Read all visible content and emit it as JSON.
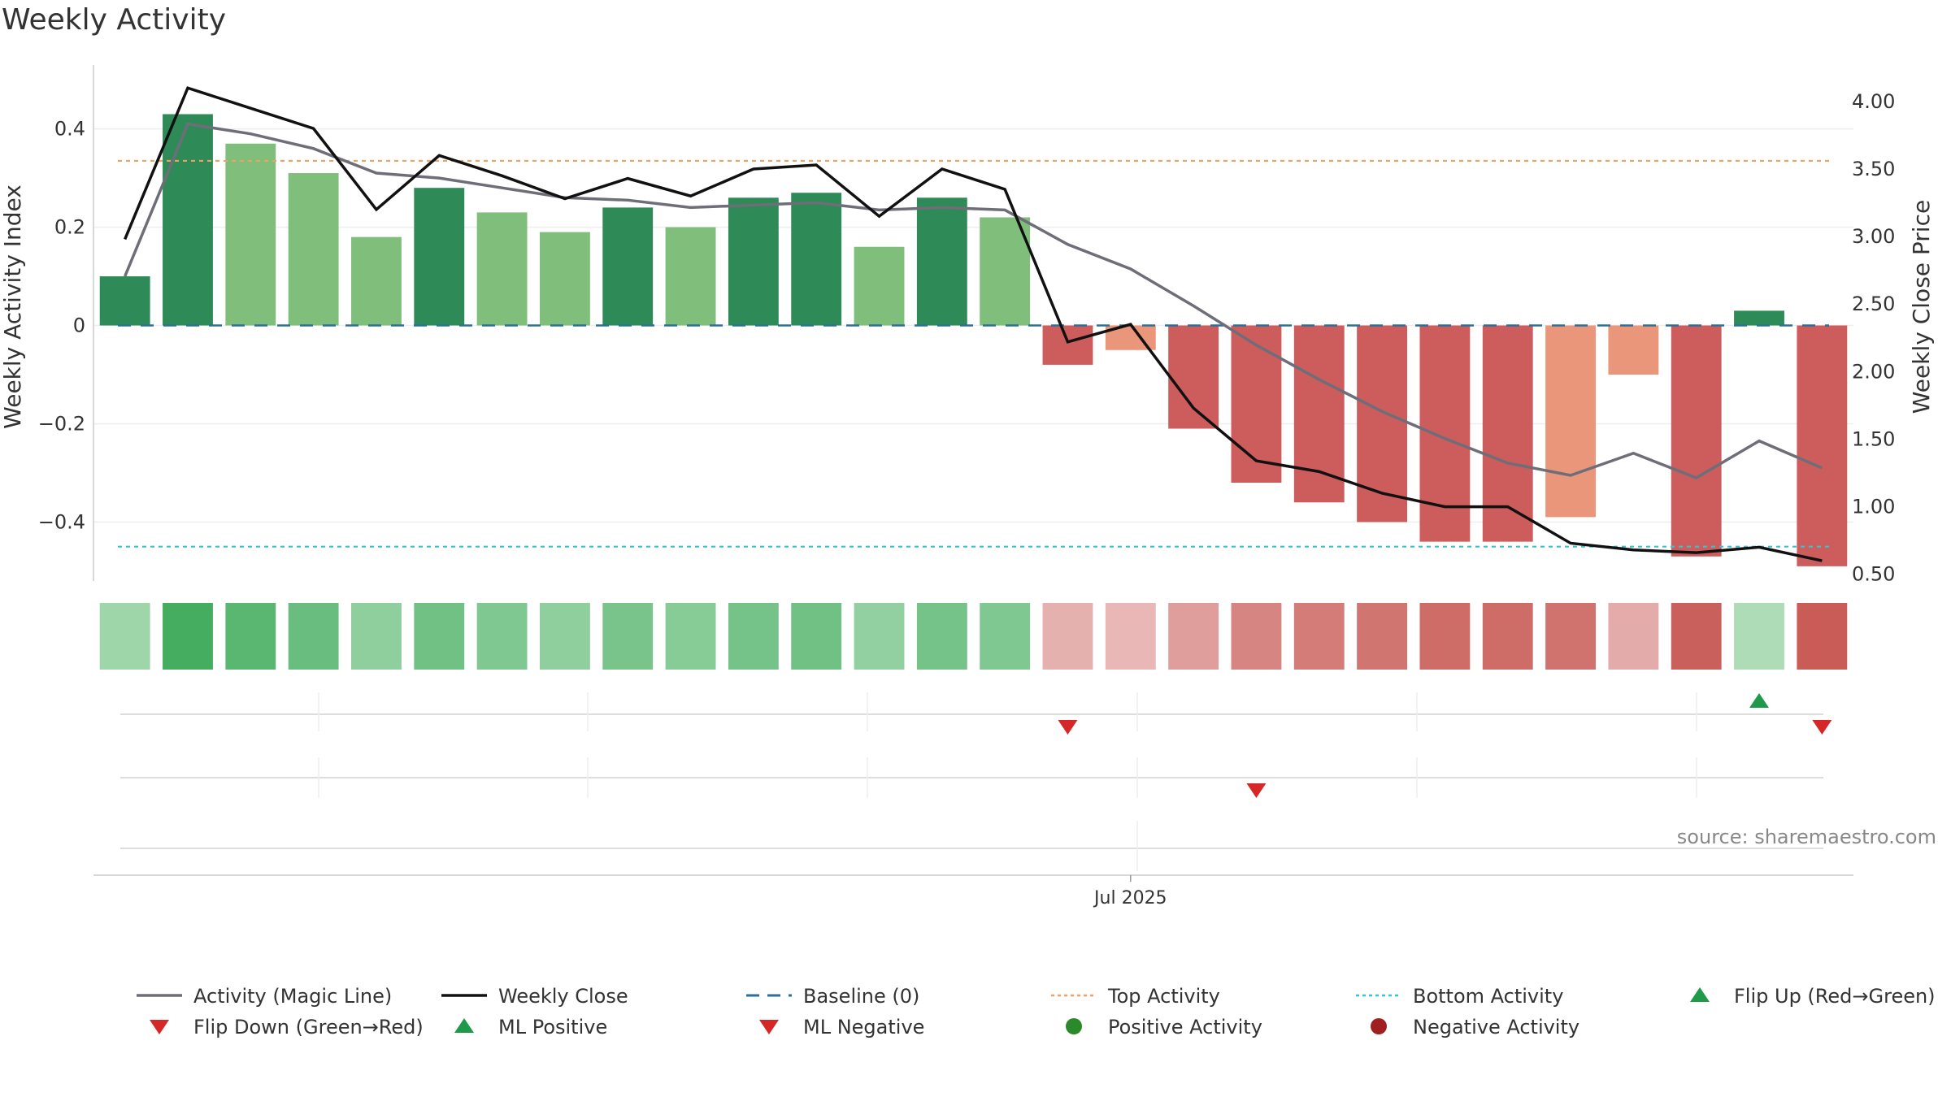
{
  "title": "Weekly Activity",
  "source": "source: sharemaestro.com",
  "colors": {
    "magic_line": "#6e6e78",
    "close_line": "#111111",
    "baseline": "#2b6f9c",
    "top_line": "#f0a060",
    "bottom_line": "#34c3d3",
    "flip_up": "#1e9a4a",
    "flip_down": "#d62728",
    "ml_positive": "#1e9a4a",
    "ml_negative": "#d62728",
    "positive_dot": "#2a8a2a",
    "negative_dot": "#a02020"
  },
  "chart_data": {
    "type": "bar",
    "title": "Weekly Activity",
    "x_tick_labels": [
      "Jul 2025"
    ],
    "x_tick_index": 16.5,
    "left_axis": {
      "label": "Weekly Activity Index",
      "ylim": [
        -0.52,
        0.53
      ],
      "ticks": [
        -0.4,
        -0.2,
        0,
        0.2,
        0.4
      ],
      "tick_labels": [
        "−0.4",
        "−0.2",
        "0",
        "0.2",
        "0.4"
      ]
    },
    "right_axis": {
      "label": "Weekly Close Price",
      "ylim": [
        0.45,
        4.27
      ],
      "ticks": [
        0.5,
        1.0,
        1.5,
        2.0,
        2.5,
        3.0,
        3.5,
        4.0
      ],
      "tick_labels": [
        "0.50",
        "1.00",
        "1.50",
        "2.00",
        "2.50",
        "3.00",
        "3.50",
        "4.00"
      ]
    },
    "activity_index": [
      0.1,
      0.43,
      0.37,
      0.31,
      0.18,
      0.28,
      0.23,
      0.19,
      0.24,
      0.2,
      0.26,
      0.27,
      0.16,
      0.26,
      0.22,
      -0.08,
      -0.05,
      -0.21,
      -0.32,
      -0.36,
      -0.4,
      -0.44,
      -0.44,
      -0.39,
      -0.1,
      -0.47,
      0.03,
      -0.49
    ],
    "bar_strength": [
      "strong",
      "strong",
      "light",
      "light",
      "light",
      "strong",
      "light",
      "light",
      "strong",
      "light",
      "strong",
      "strong",
      "light",
      "strong",
      "light",
      "strong",
      "light",
      "strong",
      "strong",
      "strong",
      "strong",
      "strong",
      "strong",
      "light",
      "light",
      "strong",
      "strong",
      "strong"
    ],
    "magic_line": [
      0.1,
      0.41,
      0.39,
      0.36,
      0.31,
      0.3,
      0.28,
      0.26,
      0.255,
      0.24,
      0.245,
      0.25,
      0.235,
      0.24,
      0.235,
      0.165,
      0.115,
      0.04,
      -0.04,
      -0.11,
      -0.175,
      -0.23,
      -0.28,
      -0.305,
      -0.26,
      -0.31,
      -0.235,
      -0.29
    ],
    "weekly_close": [
      2.98,
      4.1,
      3.95,
      3.8,
      3.2,
      3.6,
      3.45,
      3.28,
      3.43,
      3.3,
      3.5,
      3.53,
      3.15,
      3.5,
      3.35,
      2.22,
      2.35,
      1.73,
      1.34,
      1.26,
      1.1,
      1.0,
      1.0,
      0.73,
      0.68,
      0.66,
      0.7,
      0.6
    ],
    "top_activity": 0.335,
    "bottom_activity": -0.45,
    "baseline": 0,
    "strip_intensity": [
      0.35,
      0.95,
      0.8,
      0.7,
      0.45,
      0.65,
      0.55,
      0.45,
      0.6,
      0.5,
      0.62,
      0.65,
      0.42,
      0.62,
      0.55,
      0.3,
      0.25,
      0.45,
      0.65,
      0.72,
      0.78,
      0.85,
      0.85,
      0.8,
      0.35,
      0.95,
      0.25,
      0.98
    ],
    "flip_up_index": [
      26
    ],
    "flip_down_index": [
      15,
      27
    ],
    "ml_negative_index": [
      18
    ],
    "ml_positive_index": [],
    "legend_placement": "bottom",
    "legend": [
      {
        "label": "Activity (Magic Line)",
        "kind": "line",
        "color": "#6e6e78"
      },
      {
        "label": "Weekly Close",
        "kind": "line",
        "color": "#111111"
      },
      {
        "label": "Baseline (0)",
        "kind": "dash",
        "color": "#2b6f9c"
      },
      {
        "label": "Top Activity",
        "kind": "dot-line",
        "color": "#f0a060"
      },
      {
        "label": "Bottom Activity",
        "kind": "dot-line",
        "color": "#34c3d3"
      },
      {
        "label": "Flip Up (Red→Green)",
        "kind": "tri-up",
        "color": "#1e9a4a"
      },
      {
        "label": "Flip Down (Green→Red)",
        "kind": "tri-down",
        "color": "#d62728"
      },
      {
        "label": "ML Positive",
        "kind": "tri-up",
        "color": "#1e9a4a"
      },
      {
        "label": "ML Negative",
        "kind": "tri-down",
        "color": "#d62728"
      },
      {
        "label": "Positive Activity",
        "kind": "circle",
        "color": "#2a8a2a"
      },
      {
        "label": "Negative Activity",
        "kind": "circle",
        "color": "#a02020"
      }
    ]
  }
}
